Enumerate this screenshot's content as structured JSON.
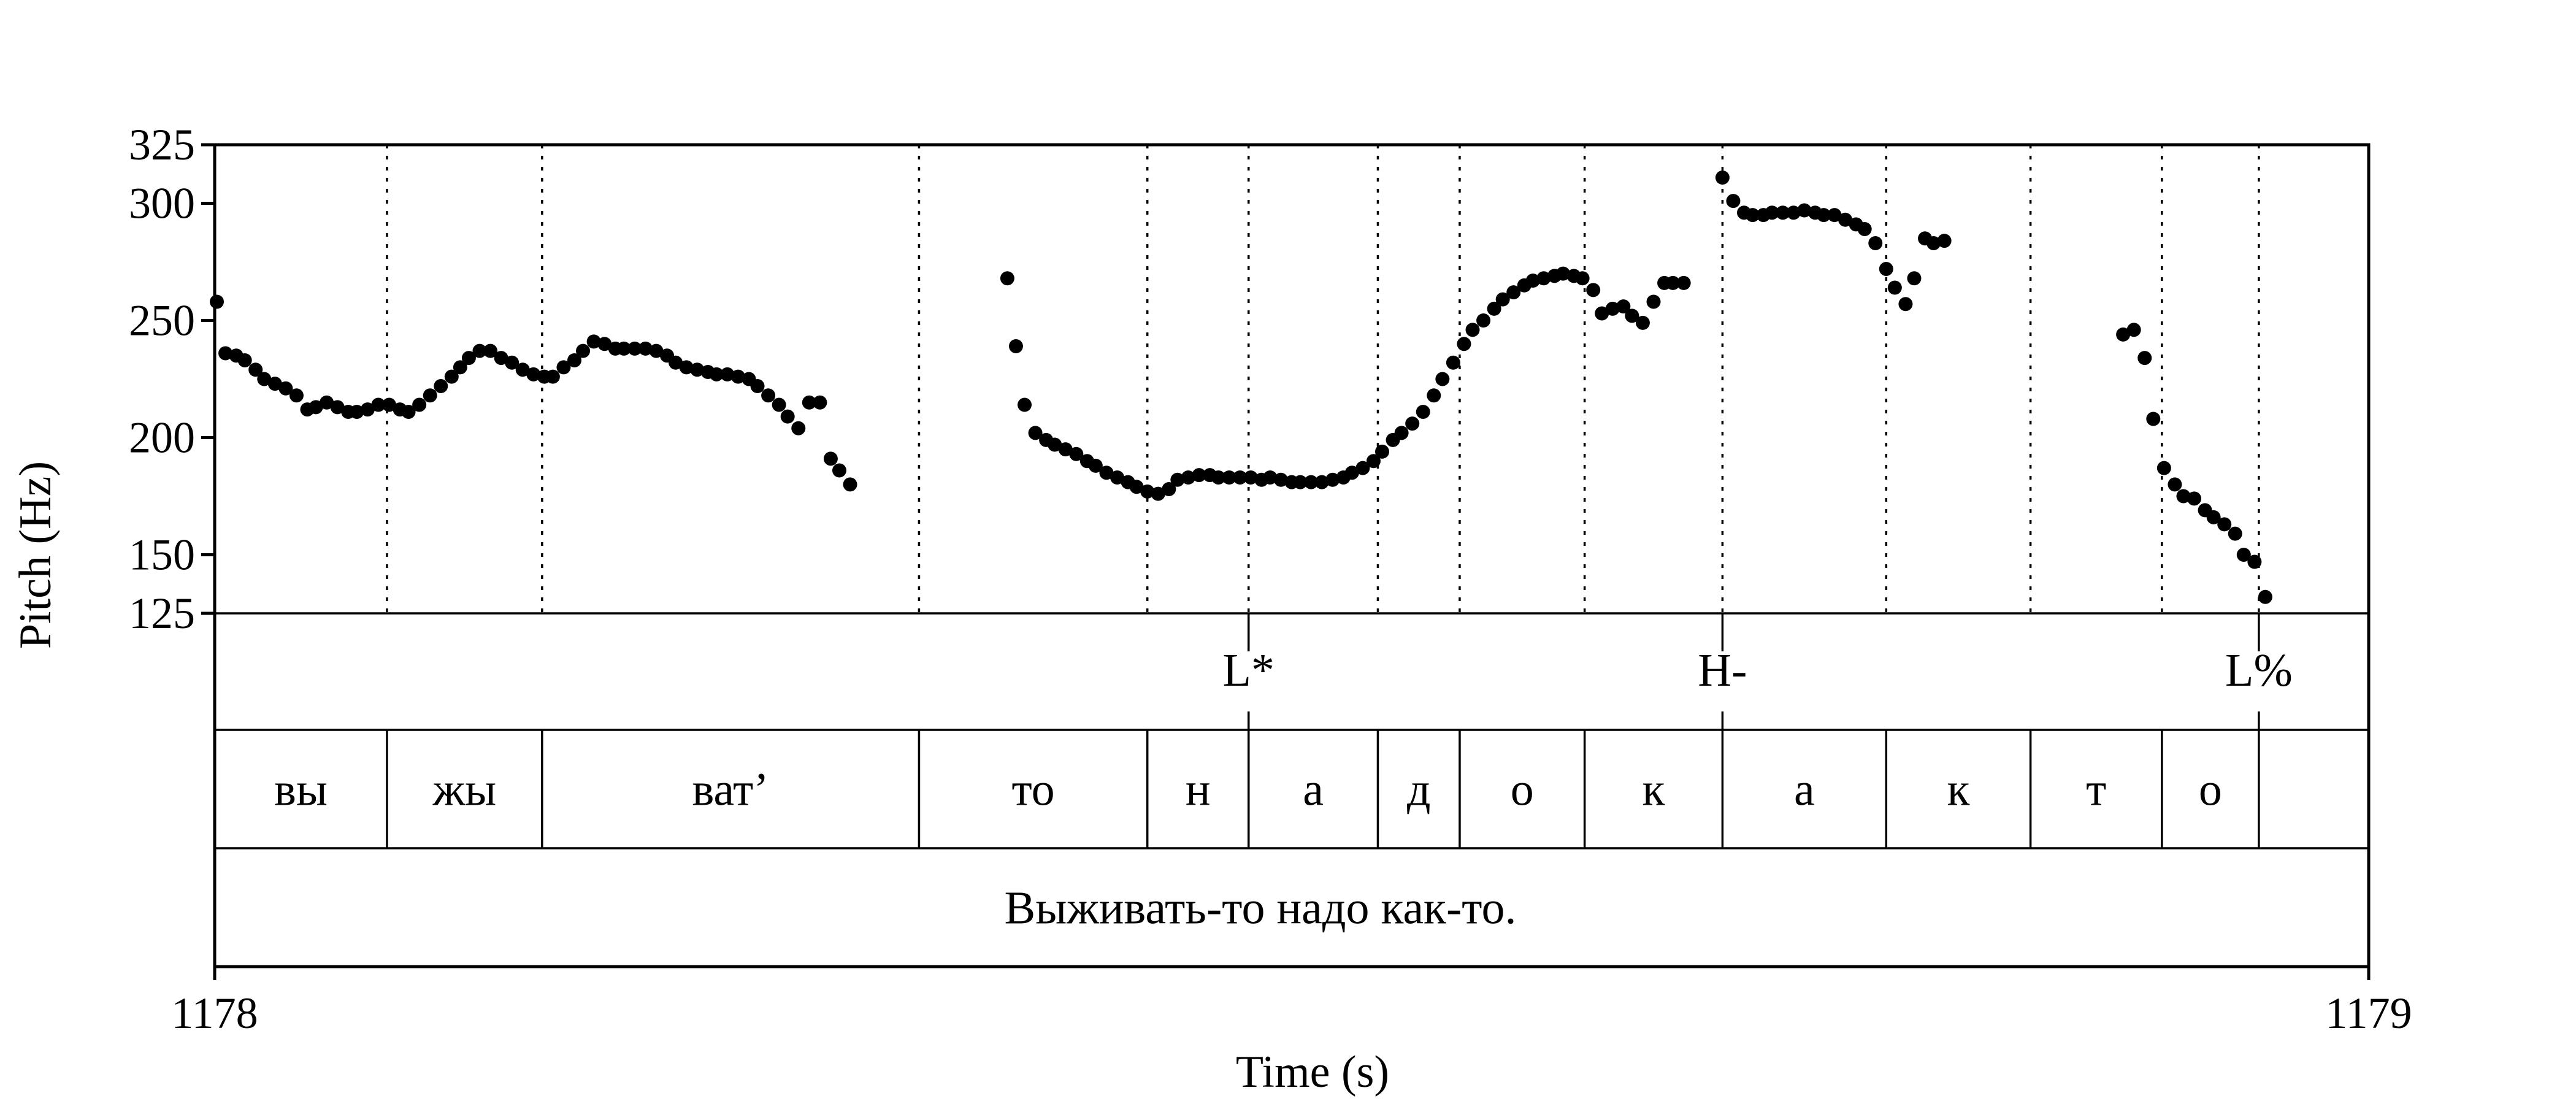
{
  "chart_data": {
    "type": "scatter",
    "xlabel": "Time (s)",
    "ylabel": "Pitch (Hz)",
    "xlim": [
      1178,
      1179
    ],
    "ylim": [
      125,
      325
    ],
    "x_ticks": [
      "1178",
      "1179"
    ],
    "y_ticks": [
      {
        "value": 325,
        "label": "325"
      },
      {
        "value": 300,
        "label": "300"
      },
      {
        "value": 250,
        "label": "250"
      },
      {
        "value": 200,
        "label": "200"
      },
      {
        "value": 150,
        "label": "150"
      },
      {
        "value": 125,
        "label": "125"
      }
    ],
    "grid_times": [
      1178.08,
      1178.152,
      1178.327,
      1178.433,
      1178.48,
      1178.54,
      1178.578,
      1178.636,
      1178.7,
      1178.776,
      1178.843,
      1178.904,
      1178.949
    ],
    "tones": [
      {
        "time": 1178.48,
        "label": "L*"
      },
      {
        "time": 1178.7,
        "label": "H-"
      },
      {
        "time": 1178.949,
        "label": "L%"
      }
    ],
    "syllables": [
      {
        "start": 1178.0,
        "end": 1178.08,
        "label": "вы"
      },
      {
        "start": 1178.08,
        "end": 1178.152,
        "label": "жы"
      },
      {
        "start": 1178.152,
        "end": 1178.327,
        "label": "ват’"
      },
      {
        "start": 1178.327,
        "end": 1178.433,
        "label": "то"
      },
      {
        "start": 1178.433,
        "end": 1178.48,
        "label": "н"
      },
      {
        "start": 1178.48,
        "end": 1178.54,
        "label": "а"
      },
      {
        "start": 1178.54,
        "end": 1178.578,
        "label": "д"
      },
      {
        "start": 1178.578,
        "end": 1178.636,
        "label": "о"
      },
      {
        "start": 1178.636,
        "end": 1178.7,
        "label": "к"
      },
      {
        "start": 1178.7,
        "end": 1178.776,
        "label": "а"
      },
      {
        "start": 1178.776,
        "end": 1178.843,
        "label": "к"
      },
      {
        "start": 1178.843,
        "end": 1178.904,
        "label": "т"
      },
      {
        "start": 1178.904,
        "end": 1178.949,
        "label": "о"
      },
      {
        "start": 1178.949,
        "end": 1179.0,
        "label": ""
      }
    ],
    "sentence": "Выживать-то надо как-то.",
    "series": [
      {
        "points": [
          [
            1178.001,
            258
          ],
          [
            1178.005,
            236
          ],
          [
            1178.01,
            235
          ],
          [
            1178.014,
            233
          ],
          [
            1178.019,
            229
          ],
          [
            1178.023,
            225
          ],
          [
            1178.028,
            223
          ],
          [
            1178.033,
            221
          ],
          [
            1178.038,
            218
          ],
          [
            1178.043,
            212
          ],
          [
            1178.047,
            213
          ],
          [
            1178.052,
            215
          ],
          [
            1178.057,
            213
          ],
          [
            1178.062,
            211
          ],
          [
            1178.066,
            211
          ],
          [
            1178.071,
            212
          ],
          [
            1178.076,
            214
          ],
          [
            1178.081,
            214
          ],
          [
            1178.086,
            212
          ],
          [
            1178.09,
            211
          ],
          [
            1178.095,
            214
          ],
          [
            1178.1,
            218
          ],
          [
            1178.105,
            222
          ],
          [
            1178.11,
            226
          ],
          [
            1178.114,
            230
          ],
          [
            1178.118,
            234
          ],
          [
            1178.123,
            237
          ],
          [
            1178.128,
            237
          ],
          [
            1178.133,
            234
          ],
          [
            1178.138,
            232
          ],
          [
            1178.143,
            229
          ],
          [
            1178.148,
            227
          ],
          [
            1178.153,
            226
          ],
          [
            1178.157,
            226
          ],
          [
            1178.162,
            230
          ],
          [
            1178.167,
            233
          ],
          [
            1178.171,
            237
          ],
          [
            1178.176,
            241
          ],
          [
            1178.181,
            240
          ],
          [
            1178.186,
            238
          ],
          [
            1178.19,
            238
          ],
          [
            1178.195,
            238
          ],
          [
            1178.2,
            238
          ],
          [
            1178.205,
            237
          ],
          [
            1178.21,
            235
          ],
          [
            1178.214,
            232
          ],
          [
            1178.219,
            230
          ],
          [
            1178.224,
            229
          ],
          [
            1178.229,
            228
          ],
          [
            1178.233,
            227
          ],
          [
            1178.238,
            227
          ],
          [
            1178.243,
            226
          ],
          [
            1178.248,
            225
          ],
          [
            1178.252,
            222
          ],
          [
            1178.257,
            218
          ],
          [
            1178.262,
            214
          ],
          [
            1178.266,
            209
          ],
          [
            1178.271,
            204
          ],
          [
            1178.276,
            215
          ],
          [
            1178.281,
            215
          ],
          [
            1178.286,
            191
          ],
          [
            1178.29,
            186
          ],
          [
            1178.295,
            180
          ]
        ]
      },
      {
        "points": [
          [
            1178.368,
            268
          ],
          [
            1178.372,
            239
          ],
          [
            1178.376,
            214
          ],
          [
            1178.381,
            202
          ],
          [
            1178.386,
            199
          ],
          [
            1178.39,
            197
          ],
          [
            1178.395,
            195
          ],
          [
            1178.4,
            193
          ],
          [
            1178.405,
            190
          ],
          [
            1178.409,
            188
          ],
          [
            1178.414,
            185
          ],
          [
            1178.419,
            183
          ],
          [
            1178.424,
            181
          ],
          [
            1178.428,
            179
          ],
          [
            1178.433,
            177
          ],
          [
            1178.438,
            176
          ],
          [
            1178.443,
            178
          ],
          [
            1178.447,
            182
          ],
          [
            1178.452,
            183
          ],
          [
            1178.457,
            184
          ],
          [
            1178.462,
            184
          ],
          [
            1178.466,
            183
          ],
          [
            1178.471,
            183
          ],
          [
            1178.476,
            183
          ],
          [
            1178.481,
            183
          ],
          [
            1178.486,
            182
          ],
          [
            1178.49,
            183
          ],
          [
            1178.495,
            182
          ],
          [
            1178.5,
            181
          ],
          [
            1178.504,
            181
          ],
          [
            1178.509,
            181
          ],
          [
            1178.514,
            181
          ],
          [
            1178.519,
            182
          ],
          [
            1178.524,
            183
          ],
          [
            1178.528,
            185
          ],
          [
            1178.533,
            187
          ],
          [
            1178.538,
            190
          ],
          [
            1178.542,
            194
          ],
          [
            1178.547,
            199
          ],
          [
            1178.551,
            202
          ],
          [
            1178.556,
            206
          ],
          [
            1178.561,
            211
          ],
          [
            1178.566,
            218
          ],
          [
            1178.57,
            225
          ],
          [
            1178.575,
            232
          ],
          [
            1178.58,
            240
          ],
          [
            1178.584,
            246
          ],
          [
            1178.589,
            250
          ],
          [
            1178.594,
            255
          ],
          [
            1178.598,
            259
          ],
          [
            1178.603,
            262
          ],
          [
            1178.608,
            265
          ],
          [
            1178.612,
            267
          ],
          [
            1178.617,
            268
          ],
          [
            1178.622,
            269
          ],
          [
            1178.626,
            270
          ],
          [
            1178.631,
            269
          ],
          [
            1178.635,
            268
          ],
          [
            1178.64,
            263
          ],
          [
            1178.644,
            253
          ],
          [
            1178.649,
            255
          ],
          [
            1178.654,
            256
          ],
          [
            1178.658,
            252
          ],
          [
            1178.663,
            249
          ],
          [
            1178.668,
            258
          ],
          [
            1178.673,
            266
          ],
          [
            1178.677,
            266
          ],
          [
            1178.682,
            266
          ]
        ]
      },
      {
        "points": [
          [
            1178.7,
            311
          ],
          [
            1178.705,
            301
          ],
          [
            1178.71,
            296
          ],
          [
            1178.714,
            295
          ],
          [
            1178.719,
            295
          ],
          [
            1178.723,
            296
          ],
          [
            1178.728,
            296
          ],
          [
            1178.733,
            296
          ],
          [
            1178.738,
            297
          ],
          [
            1178.743,
            296
          ],
          [
            1178.747,
            295
          ],
          [
            1178.752,
            295
          ],
          [
            1178.757,
            293
          ],
          [
            1178.762,
            291
          ],
          [
            1178.766,
            289
          ],
          [
            1178.771,
            283
          ],
          [
            1178.776,
            272
          ],
          [
            1178.78,
            264
          ],
          [
            1178.785,
            257
          ],
          [
            1178.789,
            268
          ],
          [
            1178.794,
            285
          ],
          [
            1178.798,
            283
          ],
          [
            1178.803,
            284
          ]
        ]
      },
      {
        "points": [
          [
            1178.886,
            244
          ],
          [
            1178.891,
            246
          ],
          [
            1178.896,
            234
          ],
          [
            1178.9,
            208
          ],
          [
            1178.905,
            187
          ],
          [
            1178.91,
            180
          ],
          [
            1178.914,
            175
          ],
          [
            1178.919,
            174
          ],
          [
            1178.924,
            169
          ],
          [
            1178.928,
            166
          ],
          [
            1178.933,
            163
          ],
          [
            1178.938,
            159
          ],
          [
            1178.942,
            150
          ],
          [
            1178.947,
            147
          ],
          [
            1178.952,
            132
          ]
        ]
      }
    ]
  }
}
